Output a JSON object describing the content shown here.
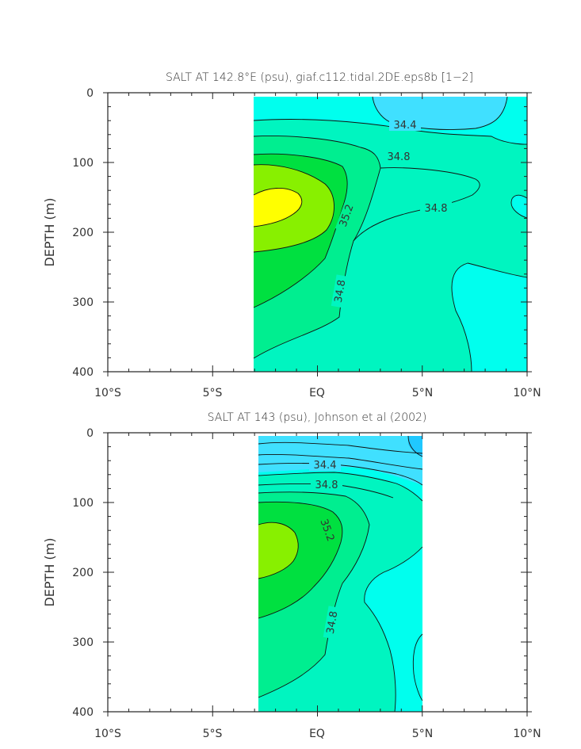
{
  "chart_data": [
    {
      "type": "contour",
      "title": "SALT AT 142.8°E (psu), giaf.c112.tidal.2DE.eps8b [1−2]",
      "ylabel": "DEPTH (m)",
      "xticks": [
        "10°S",
        "5°S",
        "EQ",
        "5°N",
        "10°N"
      ],
      "yticks": [
        "0",
        "100",
        "200",
        "300",
        "400"
      ],
      "xlim": [
        -10,
        10
      ],
      "ylim": [
        400,
        0
      ],
      "data_extent": {
        "x": [
          -3.1,
          10
        ],
        "y": [
          5,
          400
        ]
      },
      "contour_labels": [
        "34.4",
        "34.8",
        "34.8",
        "35.2",
        "34.8"
      ],
      "colors": {
        "c1": "#40e0ff",
        "c2": "#00ffee",
        "c3": "#00f5c0",
        "c4": "#00ee90",
        "c5": "#00e040",
        "c6": "#88f000",
        "c7": "#ffff00"
      }
    },
    {
      "type": "contour",
      "title": "SALT AT 143 (psu), Johnson et al (2002)",
      "ylabel": "DEPTH (m)",
      "xticks": [
        "10°S",
        "5°S",
        "EQ",
        "5°N",
        "10°N"
      ],
      "yticks": [
        "0",
        "100",
        "200",
        "300",
        "400"
      ],
      "xlim": [
        -10,
        10
      ],
      "ylim": [
        400,
        0
      ],
      "data_extent": {
        "x": [
          -2.8,
          5
        ],
        "y": [
          5,
          400
        ]
      },
      "contour_labels": [
        "34.4",
        "34.8",
        "35.2",
        "34.8"
      ],
      "colors": {
        "c0": "#20c8ff",
        "c1": "#40e0ff",
        "c2": "#00ffee",
        "c3": "#00f5c0",
        "c4": "#00ee90",
        "c5": "#00e040",
        "c6": "#88f000"
      }
    }
  ]
}
